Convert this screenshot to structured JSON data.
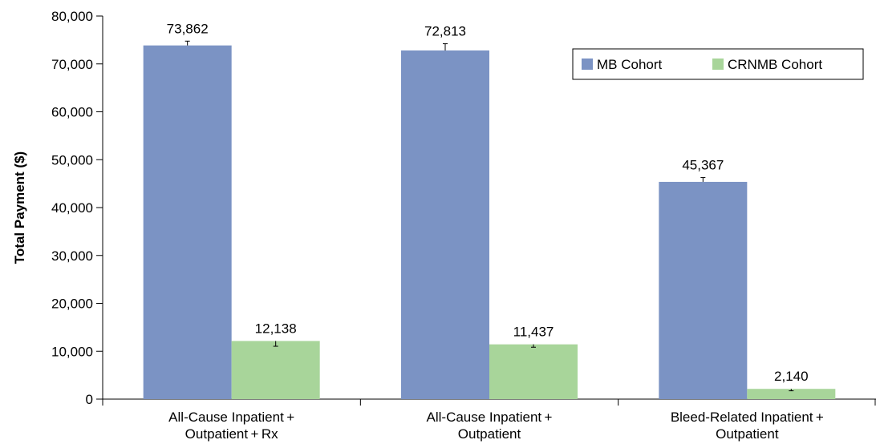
{
  "chart_data": {
    "type": "bar",
    "ylabel": "Total Payment ($)",
    "ylim": [
      0,
      80000
    ],
    "yticks": [
      "0",
      "10,000",
      "20,000",
      "30,000",
      "40,000",
      "50,000",
      "60,000",
      "70,000",
      "80,000"
    ],
    "categories": [
      [
        "All-Cause Inpatient +",
        "Outpatient + Rx"
      ],
      [
        "All-Cause Inpatient +",
        "Outpatient"
      ],
      [
        "Bleed-Related Inpatient +",
        "Outpatient"
      ]
    ],
    "series": [
      {
        "name": "MB Cohort",
        "color": "#7b93c4",
        "values": [
          73862,
          72813,
          45367
        ],
        "labels": [
          "73,862",
          "72,813",
          "45,367"
        ],
        "error_plus": [
          900,
          1400,
          900
        ],
        "error_minus": [
          0,
          0,
          0
        ]
      },
      {
        "name": "CRNMB Cohort",
        "color": "#a8d59a",
        "values": [
          12138,
          11437,
          2140
        ],
        "labels": [
          "12,138",
          "11,437",
          "2,140"
        ],
        "error_plus": [
          0,
          0,
          0
        ],
        "error_minus": [
          1100,
          600,
          400
        ]
      }
    ],
    "legend_position": "top-right",
    "grid": false
  }
}
